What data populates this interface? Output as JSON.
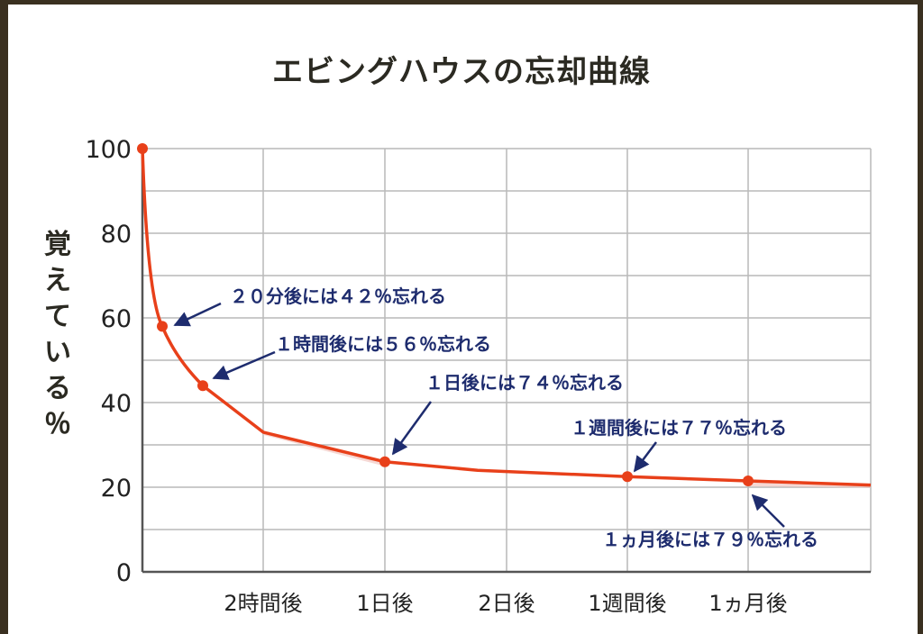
{
  "chart_data": {
    "type": "line",
    "title": "エビングハウスの忘却曲線",
    "xlabel": "",
    "ylabel": "覚えている％",
    "ylim": [
      0,
      100
    ],
    "yticks": [
      0,
      20,
      40,
      60,
      80,
      100
    ],
    "x_tick_labels": [
      "2時間後",
      "1日後",
      "2日後",
      "1週間後",
      "1ヵ月後"
    ],
    "grid": true,
    "series": [
      {
        "values": [
          100,
          58,
          44,
          33,
          26,
          24,
          22.5,
          21.5,
          20.5
        ],
        "color": "#e8401a"
      }
    ],
    "markers": [
      100,
      58,
      44,
      26,
      22.5,
      21.5
    ],
    "annotations": [
      "２０分後には４２％忘れる",
      "１時間後には５６％忘れる",
      "１日後には７４％忘れる",
      "１週間後には７７％忘れる",
      "１ヵ月後には７９％忘れる"
    ],
    "colors": {
      "line": "#e8401a",
      "marker": "#e8401a",
      "annotation": "#1e2c6e",
      "grid": "#b9b9b9",
      "axis": "#555555",
      "shade": "#f2c7c2"
    }
  }
}
